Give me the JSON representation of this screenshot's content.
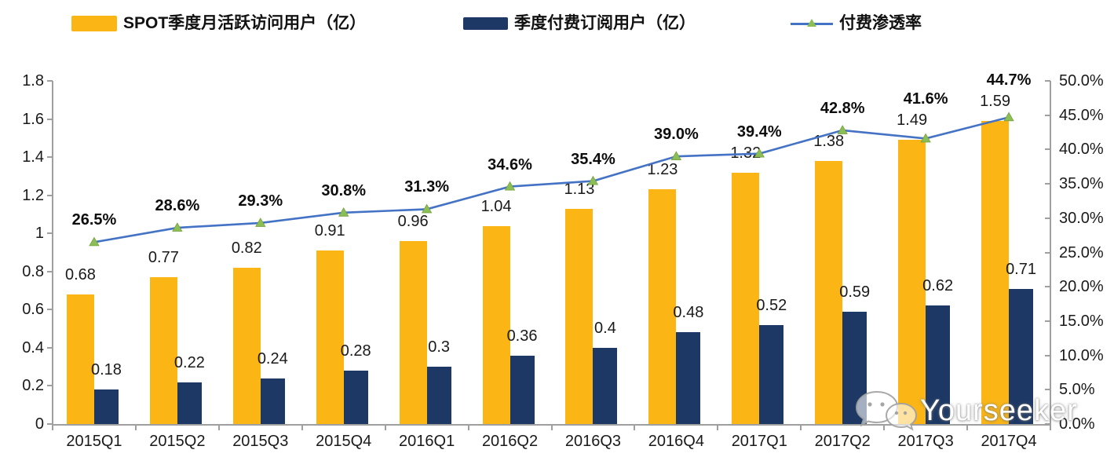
{
  "legend": {
    "items": [
      {
        "label": "SPOT季度月活跃访问用户（亿）",
        "type": "bar",
        "color": "#FBB616"
      },
      {
        "label": "季度付费订阅用户（亿）",
        "type": "bar",
        "color": "#1D3865"
      },
      {
        "label": "付费渗透率",
        "type": "line",
        "color": "#4472C4",
        "marker_color": "#8CBE56"
      }
    ]
  },
  "chart_data": {
    "type": "bar+line-combo",
    "title": "",
    "categories": [
      "2015Q1",
      "2015Q2",
      "2015Q3",
      "2015Q4",
      "2016Q1",
      "2016Q2",
      "2016Q3",
      "2016Q4",
      "2017Q1",
      "2017Q2",
      "2017Q3",
      "2017Q4"
    ],
    "series": [
      {
        "name": "SPOT季度月活跃访问用户（亿）",
        "type": "bar",
        "axis": "left",
        "color": "#FBB616",
        "values": [
          0.68,
          0.77,
          0.82,
          0.91,
          0.96,
          1.04,
          1.13,
          1.23,
          1.32,
          1.38,
          1.49,
          1.59
        ]
      },
      {
        "name": "季度付费订阅用户（亿）",
        "type": "bar",
        "axis": "left",
        "color": "#1D3865",
        "values": [
          0.18,
          0.22,
          0.24,
          0.28,
          0.3,
          0.36,
          0.4,
          0.48,
          0.52,
          0.59,
          0.62,
          0.71
        ]
      },
      {
        "name": "付费渗透率",
        "type": "line",
        "axis": "right",
        "color": "#4472C4",
        "marker": "triangle-up",
        "marker_color": "#8CBE56",
        "values_pct": [
          26.5,
          28.6,
          29.3,
          30.8,
          31.3,
          34.6,
          35.4,
          39.0,
          39.4,
          42.8,
          41.6,
          44.7
        ]
      }
    ],
    "left_axis": {
      "min": 0,
      "max": 1.8,
      "step": 0.2,
      "tick_labels": [
        "0",
        "0.2",
        "0.4",
        "0.6",
        "0.8",
        "1",
        "1.2",
        "1.4",
        "1.6",
        "1.8"
      ]
    },
    "right_axis": {
      "min": 0,
      "max": 50,
      "step": 5,
      "tick_labels": [
        "0.0%",
        "5.0%",
        "10.0%",
        "15.0%",
        "20.0%",
        "25.0%",
        "30.0%",
        "35.0%",
        "40.0%",
        "45.0%",
        "50.0%"
      ]
    },
    "grid": false,
    "legend_position": "top"
  },
  "watermark": {
    "text": "Yourseeker",
    "icon": "wechat-chat-bubbles-icon"
  }
}
